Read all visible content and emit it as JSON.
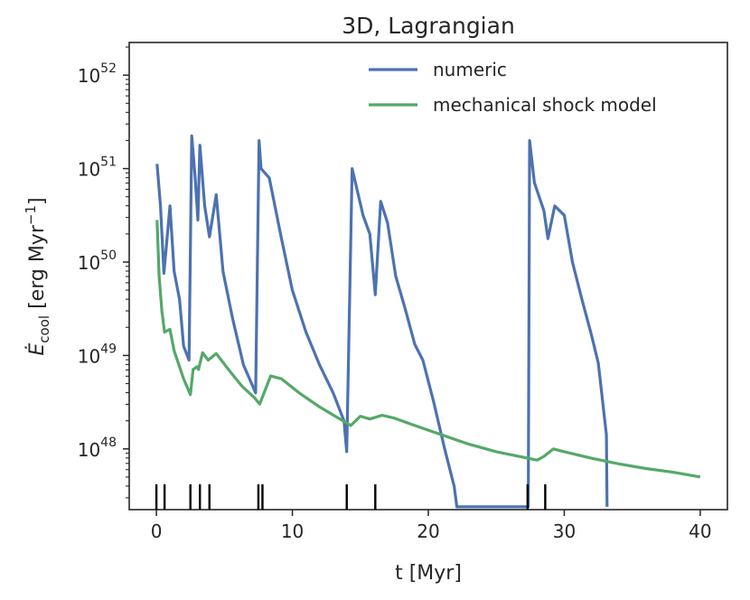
{
  "chart_data": {
    "type": "line",
    "title": "3D, Lagrangian",
    "xlabel": "t [Myr]",
    "ylabel": {
      "prefix": "Ė",
      "sub": "cool",
      "unit_open": " [erg Myr",
      "sup": "−1",
      "unit_close": "]"
    },
    "xlim": [
      -2,
      42
    ],
    "ylim_log10": [
      47.35,
      52.35
    ],
    "yscale": "log",
    "x_ticks": [
      0,
      10,
      20,
      30,
      40
    ],
    "x_tick_labels": [
      "0",
      "10",
      "20",
      "30",
      "40"
    ],
    "y_ticks_exp": [
      48,
      49,
      50,
      51,
      52
    ],
    "y_tick_base": "10",
    "y_tick_exps": [
      "48",
      "49",
      "50",
      "51",
      "52"
    ],
    "legend": {
      "position": "top-right",
      "entries": [
        "numeric",
        "mechanical shock model"
      ]
    },
    "series": [
      {
        "name": "numeric",
        "color": "#4c72b0",
        "points": [
          [
            0.05,
            51.05
          ],
          [
            0.3,
            50.6
          ],
          [
            0.55,
            49.88
          ],
          [
            0.75,
            50.2
          ],
          [
            1.0,
            50.6
          ],
          [
            1.3,
            49.9
          ],
          [
            1.7,
            49.6
          ],
          [
            2.0,
            49.1
          ],
          [
            2.4,
            48.95
          ],
          [
            2.6,
            51.35
          ],
          [
            2.85,
            50.9
          ],
          [
            3.05,
            50.45
          ],
          [
            3.2,
            51.25
          ],
          [
            3.55,
            50.6
          ],
          [
            3.9,
            50.27
          ],
          [
            4.4,
            50.72
          ],
          [
            4.9,
            49.9
          ],
          [
            5.6,
            49.4
          ],
          [
            6.4,
            48.9
          ],
          [
            7.3,
            48.6
          ],
          [
            7.55,
            51.3
          ],
          [
            7.7,
            51.0
          ],
          [
            8.3,
            50.9
          ],
          [
            9.2,
            50.25
          ],
          [
            10.0,
            49.7
          ],
          [
            11.0,
            49.25
          ],
          [
            12.0,
            48.9
          ],
          [
            13.0,
            48.6
          ],
          [
            13.8,
            48.3
          ],
          [
            14.0,
            47.97
          ],
          [
            14.4,
            51.0
          ],
          [
            15.2,
            50.5
          ],
          [
            15.7,
            50.3
          ],
          [
            16.1,
            49.65
          ],
          [
            16.5,
            50.65
          ],
          [
            17.0,
            50.42
          ],
          [
            17.6,
            49.85
          ],
          [
            18.3,
            49.5
          ],
          [
            19.0,
            49.12
          ],
          [
            19.6,
            48.95
          ],
          [
            20.4,
            48.5
          ],
          [
            21.2,
            48.0
          ],
          [
            21.9,
            47.6
          ],
          [
            22.1,
            47.38
          ],
          [
            27.35,
            47.38
          ],
          [
            27.45,
            51.3
          ],
          [
            27.8,
            50.85
          ],
          [
            28.5,
            50.55
          ],
          [
            28.8,
            50.25
          ],
          [
            29.3,
            50.6
          ],
          [
            30.0,
            50.5
          ],
          [
            30.6,
            50.0
          ],
          [
            31.3,
            49.6
          ],
          [
            32.0,
            49.22
          ],
          [
            32.5,
            48.92
          ],
          [
            33.1,
            48.15
          ],
          [
            33.15,
            47.38
          ]
        ]
      },
      {
        "name": "mechanical shock model",
        "color": "#55a868",
        "points": [
          [
            0.05,
            50.45
          ],
          [
            0.2,
            49.85
          ],
          [
            0.4,
            49.48
          ],
          [
            0.6,
            49.25
          ],
          [
            1.0,
            49.28
          ],
          [
            1.3,
            49.05
          ],
          [
            1.7,
            48.88
          ],
          [
            2.0,
            48.75
          ],
          [
            2.3,
            48.65
          ],
          [
            2.5,
            48.58
          ],
          [
            2.7,
            48.85
          ],
          [
            3.0,
            48.88
          ],
          [
            3.1,
            48.85
          ],
          [
            3.4,
            49.03
          ],
          [
            3.8,
            48.95
          ],
          [
            4.4,
            49.02
          ],
          [
            5.3,
            48.85
          ],
          [
            6.3,
            48.67
          ],
          [
            7.2,
            48.55
          ],
          [
            7.6,
            48.48
          ],
          [
            8.4,
            48.78
          ],
          [
            9.2,
            48.75
          ],
          [
            10.5,
            48.6
          ],
          [
            12.0,
            48.45
          ],
          [
            13.5,
            48.32
          ],
          [
            14.3,
            48.25
          ],
          [
            15.0,
            48.35
          ],
          [
            15.7,
            48.32
          ],
          [
            16.6,
            48.36
          ],
          [
            17.5,
            48.33
          ],
          [
            19.0,
            48.25
          ],
          [
            21.0,
            48.15
          ],
          [
            23.0,
            48.05
          ],
          [
            25.0,
            47.97
          ],
          [
            27.0,
            47.91
          ],
          [
            28.0,
            47.88
          ],
          [
            28.5,
            47.92
          ],
          [
            29.2,
            48.0
          ],
          [
            30.0,
            47.97
          ],
          [
            32.0,
            47.9
          ],
          [
            34.0,
            47.84
          ],
          [
            36.0,
            47.79
          ],
          [
            38.0,
            47.75
          ],
          [
            40.0,
            47.7
          ]
        ]
      }
    ],
    "rug_x": [
      0.0,
      0.6,
      2.5,
      3.2,
      3.9,
      7.5,
      7.8,
      14.0,
      16.1,
      27.3,
      28.6
    ]
  }
}
